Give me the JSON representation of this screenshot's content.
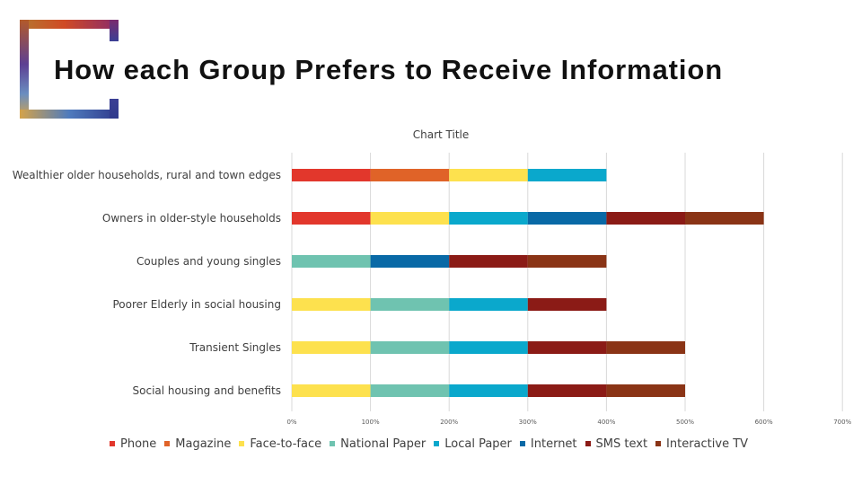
{
  "slide": {
    "title": "How each Group Prefers to Receive Information"
  },
  "colors": {
    "Phone": "#e2372c",
    "Magazine": "#e06328",
    "Face-to-face": "#fde14e",
    "National Paper": "#6fc3b0",
    "Local Paper": "#0aa8cc",
    "Internet": "#0969a6",
    "SMS text": "#8b1b16",
    "Interactive TV": "#8a3416",
    "frame_top": "#c84a26",
    "frame_left": "#3d4a9c",
    "frame_bottom": "#2f3a8c",
    "frame_right": "#8c2a63"
  },
  "chart_data": {
    "type": "bar",
    "orientation": "horizontal",
    "stacked": true,
    "title": "Chart Title",
    "categories": [
      "Wealthier older households, rural and town edges",
      "Owners in older-style households",
      "Couples and young singles",
      "Poorer Elderly in social housing",
      "Transient Singles",
      "Social housing and benefits"
    ],
    "series": [
      {
        "name": "Phone",
        "values": [
          1,
          1,
          0,
          0,
          0,
          0
        ]
      },
      {
        "name": "Magazine",
        "values": [
          1,
          0,
          0,
          0,
          0,
          0
        ]
      },
      {
        "name": "Face-to-face",
        "values": [
          1,
          1,
          0,
          1,
          1,
          1
        ]
      },
      {
        "name": "National Paper",
        "values": [
          0,
          0,
          1,
          1,
          1,
          1
        ]
      },
      {
        "name": "Local Paper",
        "values": [
          1,
          1,
          0,
          1,
          1,
          1
        ]
      },
      {
        "name": "Internet",
        "values": [
          0,
          1,
          1,
          0,
          0,
          0
        ]
      },
      {
        "name": "SMS text",
        "values": [
          0,
          1,
          1,
          1,
          1,
          1
        ]
      },
      {
        "name": "Interactive TV",
        "values": [
          0,
          1,
          1,
          0,
          1,
          1
        ]
      }
    ],
    "x_ticks": [
      "0%",
      "100%",
      "200%",
      "300%",
      "400%",
      "500%",
      "600%",
      "700%"
    ],
    "xlim": [
      0,
      7
    ],
    "grid": true,
    "legend_position": "bottom"
  }
}
